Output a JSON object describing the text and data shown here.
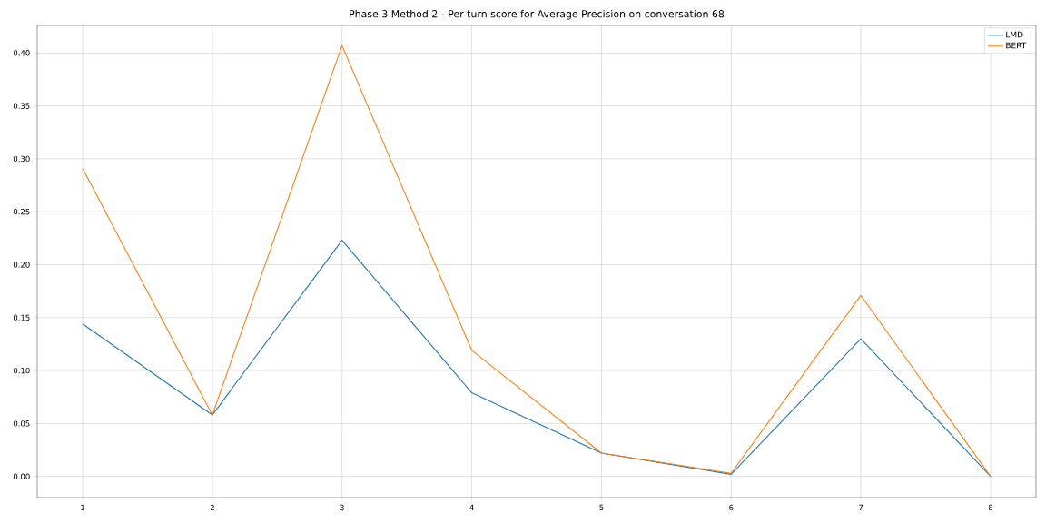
{
  "chart_data": {
    "type": "line",
    "title": "Phase 3 Method 2 - Per turn score for Average Precision on conversation 68",
    "x": [
      1,
      2,
      3,
      4,
      5,
      6,
      7,
      8
    ],
    "series": [
      {
        "name": "LMD",
        "color": "#1f77b4",
        "values": [
          0.144,
          0.058,
          0.223,
          0.079,
          0.022,
          0.002,
          0.13,
          0.0
        ]
      },
      {
        "name": "BERT",
        "color": "#ff7f0e",
        "values": [
          0.291,
          0.058,
          0.407,
          0.119,
          0.022,
          0.003,
          0.171,
          0.0
        ]
      }
    ],
    "xlim": [
      0.65,
      8.35
    ],
    "ylim": [
      -0.02,
      0.426
    ],
    "xticks": [
      1,
      2,
      3,
      4,
      5,
      6,
      7,
      8
    ],
    "yticks": [
      {
        "value": 0,
        "label": "0.00"
      },
      {
        "value": 0.05,
        "label": "0.05"
      },
      {
        "value": 0.1,
        "label": "0.10"
      },
      {
        "value": 0.15,
        "label": "0.15"
      },
      {
        "value": 0.2,
        "label": "0.20"
      },
      {
        "value": 0.25,
        "label": "0.25"
      },
      {
        "value": 0.3,
        "label": "0.30"
      },
      {
        "value": 0.35,
        "label": "0.35"
      },
      {
        "value": 0.4,
        "label": "0.40"
      }
    ],
    "grid": true,
    "legend": "top right"
  }
}
